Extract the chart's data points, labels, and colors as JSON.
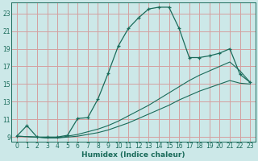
{
  "xlabel": "Humidex (Indice chaleur)",
  "bg_color": "#cce8e8",
  "grid_color": "#d4a0a0",
  "line_color": "#1a6b5a",
  "xlim": [
    -0.5,
    23.5
  ],
  "ylim": [
    8.5,
    24.2
  ],
  "xticks": [
    0,
    1,
    2,
    3,
    4,
    5,
    6,
    7,
    8,
    9,
    10,
    11,
    12,
    13,
    14,
    15,
    16,
    17,
    18,
    19,
    20,
    21,
    22,
    23
  ],
  "yticks": [
    9,
    11,
    13,
    15,
    17,
    19,
    21,
    23
  ],
  "curve_x": [
    0,
    1,
    2,
    3,
    4,
    5,
    6,
    7,
    8,
    9,
    10,
    11,
    12,
    13,
    14,
    15,
    16,
    17,
    18,
    19,
    20,
    21,
    22,
    23
  ],
  "curve_y": [
    9.1,
    10.3,
    9.0,
    9.0,
    9.0,
    9.2,
    11.1,
    11.2,
    13.3,
    16.2,
    19.3,
    21.3,
    22.5,
    23.5,
    23.7,
    23.7,
    21.3,
    18.0,
    18.0,
    18.2,
    18.5,
    19.0,
    16.1,
    15.2
  ],
  "line2_x": [
    0,
    2,
    3,
    4,
    5,
    6,
    7,
    8,
    9,
    10,
    11,
    12,
    13,
    14,
    15,
    16,
    17,
    18,
    19,
    20,
    21,
    22,
    23
  ],
  "line2_y": [
    9.1,
    9.0,
    8.9,
    8.9,
    9.0,
    9.1,
    9.3,
    9.5,
    9.8,
    10.2,
    10.6,
    11.1,
    11.6,
    12.1,
    12.6,
    13.2,
    13.7,
    14.2,
    14.6,
    15.0,
    15.4,
    15.1,
    15.0
  ],
  "line3_x": [
    0,
    2,
    3,
    4,
    5,
    6,
    7,
    8,
    9,
    10,
    11,
    12,
    13,
    14,
    15,
    16,
    17,
    18,
    19,
    20,
    21,
    22,
    23
  ],
  "line3_y": [
    9.1,
    9.0,
    8.9,
    8.9,
    9.1,
    9.3,
    9.6,
    9.9,
    10.3,
    10.8,
    11.4,
    12.0,
    12.6,
    13.3,
    14.0,
    14.7,
    15.4,
    16.0,
    16.5,
    17.0,
    17.5,
    16.5,
    15.2
  ]
}
